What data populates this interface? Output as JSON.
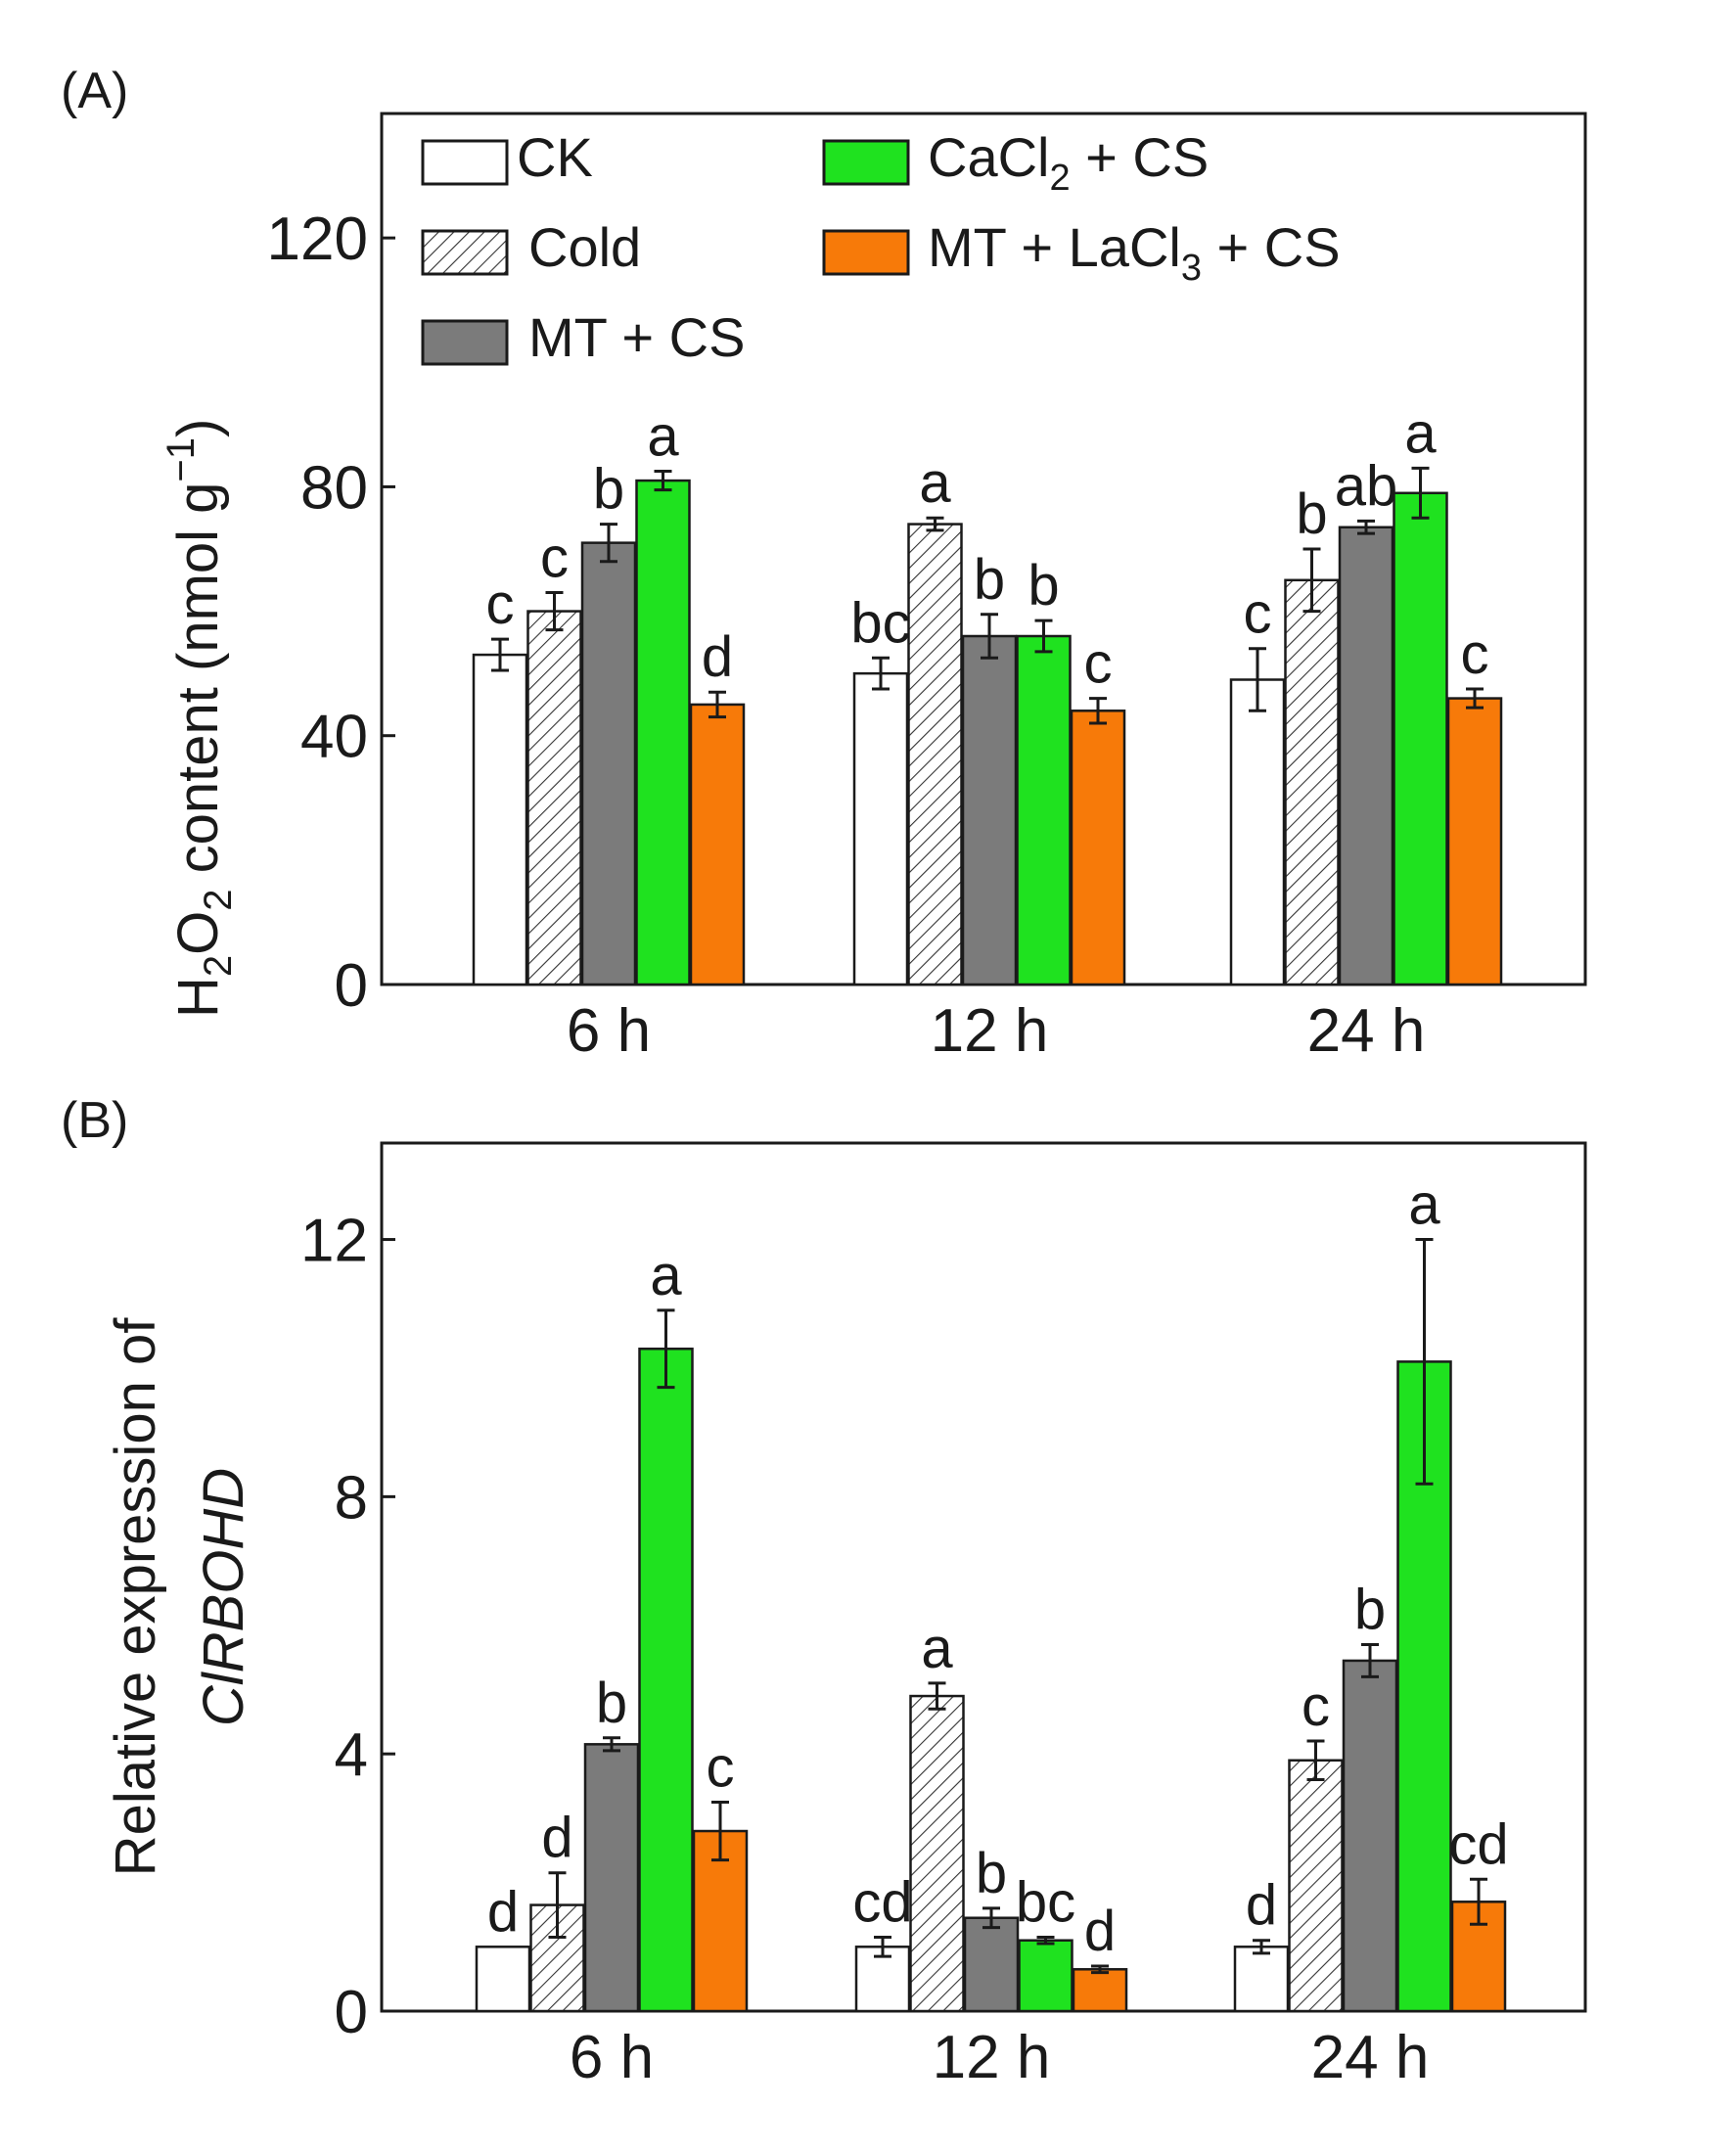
{
  "colors": {
    "ck": "#ffffff",
    "cold": "#ffffff",
    "mt_cs": "#7b7b7b",
    "cacl2_cs": "#1fe21f",
    "mt_lacl3_cs": "#f77a09",
    "axis": "#1a1a1a"
  },
  "legend": {
    "ck": "CK",
    "cold": "Cold",
    "mt_cs": "MT + CS",
    "cacl2_cs": {
      "a": "CaCl",
      "sub": "2",
      "b": " + CS"
    },
    "mt_lacl3_cs": {
      "a": "MT + LaCl",
      "sub": "3",
      "b": " + CS"
    }
  },
  "chart_data": [
    {
      "type": "bar",
      "panel_label": "(A)",
      "categories": [
        "6 h",
        "12 h",
        "24 h"
      ],
      "ylabel": {
        "a": "H",
        "s1": "2",
        "b": "O",
        "s2": "2",
        "c": " content (nmol g",
        "sup": "−1",
        "d": ")"
      },
      "ylim": [
        0,
        140
      ],
      "yticks": [
        0,
        40,
        80,
        120
      ],
      "ytick_labels": [
        "0",
        "40",
        "80",
        "120"
      ],
      "series": [
        {
          "key": "ck",
          "name": "CK",
          "values": [
            53,
            50,
            49
          ],
          "errors": [
            2.5,
            2.5,
            5
          ],
          "letters": [
            "c",
            "bc",
            "c"
          ]
        },
        {
          "key": "cold",
          "name": "Cold",
          "values": [
            60,
            74,
            65
          ],
          "errors": [
            3,
            1,
            5
          ],
          "letters": [
            "c",
            "a",
            "b"
          ]
        },
        {
          "key": "mt_cs",
          "name": "MT + CS",
          "values": [
            71,
            56,
            73.5
          ],
          "errors": [
            3,
            3.5,
            1
          ],
          "letters": [
            "b",
            "b",
            "ab"
          ]
        },
        {
          "key": "cacl2_cs",
          "name": "CaCl2 + CS",
          "values": [
            81,
            56,
            79
          ],
          "errors": [
            1.5,
            2.5,
            4
          ],
          "letters": [
            "a",
            "b",
            "a"
          ]
        },
        {
          "key": "mt_lacl3_cs",
          "name": "MT + LaCl3 + CS",
          "values": [
            45,
            44,
            46
          ],
          "errors": [
            2,
            2,
            1.5
          ],
          "letters": [
            "d",
            "c",
            "c"
          ]
        }
      ]
    },
    {
      "type": "bar",
      "panel_label": "(B)",
      "categories": [
        "6 h",
        "12 h",
        "24 h"
      ],
      "ylabel": {
        "line1": "Relative expression of",
        "line2": "ClRBOHD"
      },
      "ylim": [
        0,
        13.5
      ],
      "yticks": [
        0,
        4,
        8,
        12
      ],
      "ytick_labels": [
        "0",
        "4",
        "8",
        "12"
      ],
      "series": [
        {
          "key": "ck",
          "name": "CK",
          "values": [
            1.0,
            1.0,
            1.0
          ],
          "errors": [
            0,
            0.15,
            0.1
          ],
          "letters": [
            "d",
            "cd",
            "d"
          ]
        },
        {
          "key": "cold",
          "name": "Cold",
          "values": [
            1.65,
            4.9,
            3.9
          ],
          "errors": [
            0.5,
            0.2,
            0.3
          ],
          "letters": [
            "d",
            "a",
            "c"
          ]
        },
        {
          "key": "mt_cs",
          "name": "MT + CS",
          "values": [
            4.15,
            1.45,
            5.45
          ],
          "errors": [
            0.1,
            0.15,
            0.25
          ],
          "letters": [
            "b",
            "b",
            "b"
          ]
        },
        {
          "key": "cacl2_cs",
          "name": "CaCl2 + CS",
          "values": [
            10.3,
            1.1,
            10.1
          ],
          "errors": [
            0.6,
            0.05,
            1.9
          ],
          "letters": [
            "a",
            "bc",
            "a"
          ]
        },
        {
          "key": "mt_lacl3_cs",
          "name": "MT + LaCl3 + CS",
          "values": [
            2.8,
            0.65,
            1.7
          ],
          "errors": [
            0.45,
            0.05,
            0.35
          ],
          "letters": [
            "c",
            "d",
            "cd"
          ]
        }
      ]
    }
  ]
}
